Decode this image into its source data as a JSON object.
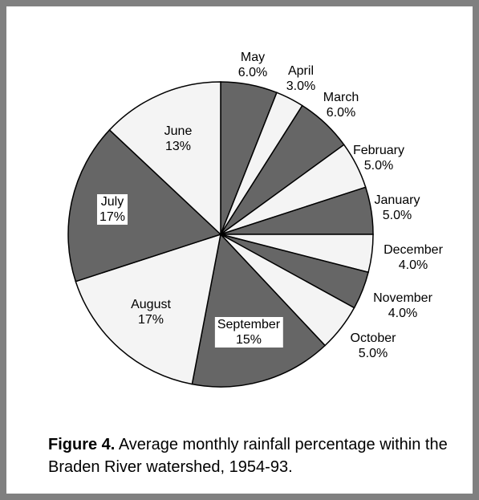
{
  "chart_data": {
    "type": "pie",
    "categories": [
      "May",
      "April",
      "March",
      "February",
      "January",
      "December",
      "November",
      "October",
      "September",
      "August",
      "July",
      "June"
    ],
    "values": [
      6,
      3,
      6,
      5,
      5,
      4,
      4,
      5,
      15,
      17,
      17,
      13
    ],
    "value_labels": [
      "6.0%",
      "3.0%",
      "6.0%",
      "5.0%",
      "5.0%",
      "4.0%",
      "4.0%",
      "5.0%",
      "15%",
      "17%",
      "17%",
      "13%"
    ],
    "colors": [
      "#666666",
      "#f4f4f4",
      "#666666",
      "#f4f4f4",
      "#666666",
      "#f4f4f4",
      "#666666",
      "#f4f4f4",
      "#666666",
      "#f4f4f4",
      "#666666",
      "#f4f4f4"
    ],
    "caption": {
      "label": "Figure 4.",
      "text": "Average monthly rainfall percentage within the Braden River watershed, 1954-93."
    }
  }
}
